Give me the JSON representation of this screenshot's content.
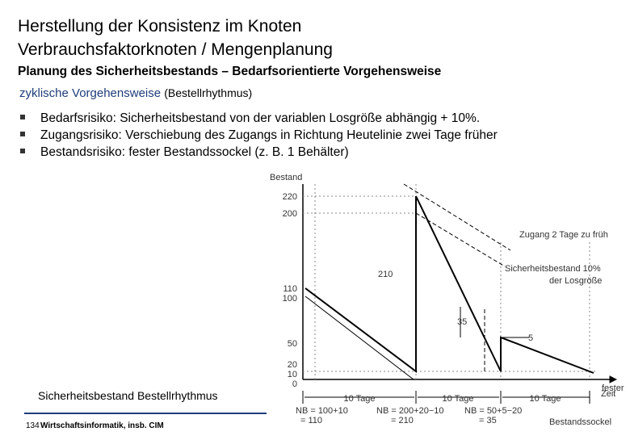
{
  "header": {
    "title_lines": [
      "Herstellung der Konsistenz im Knoten",
      "Verbrauchsfaktorknoten / Mengenplanung"
    ],
    "subtitle": "Planung des Sicherheitsbestands – Bedarfsorientierte Vorgehensweise"
  },
  "section": {
    "heading": "zyklische Vorgehensweise",
    "heading_note": "(Bestellrhythmus)"
  },
  "bullets": [
    "Bedarfsrisiko: Sicherheitsbestand von der variablen Losgröße abhängig + 10%.",
    "Zugangsrisiko: Verschiebung des Zugangs in Richtung Heutelinie zwei Tage früher",
    "Bestandsrisiko: fester Bestandssockel (z. B. 1 Behälter)"
  ],
  "caption": "Sicherheitsbestand Bestellrhythmus",
  "footer": {
    "page": "134",
    "text": "Wirtschaftsinformatik, insb. CIM"
  },
  "diagram": {
    "y_label": "Bestand",
    "x_label": "Zeit",
    "y_ticks": [
      "220",
      "200",
      "110",
      "100",
      "50",
      "20",
      "10",
      "0"
    ],
    "periods": [
      "10 Tage",
      "10 Tage",
      "10 Tage"
    ],
    "annotations": {
      "early": "Zugang 2 Tage zu früh",
      "safety_1": "Sicherheitsbestand 10%",
      "safety_2": "der Losgröße",
      "base_1": "fester",
      "base_2": "Bestandssockel",
      "level": "210",
      "gap": "35",
      "small": "5"
    },
    "orders": [
      [
        "NB = 100+10",
        "= 110"
      ],
      [
        "NB = 200+20−10",
        "= 210"
      ],
      [
        "NB = 50+5−20",
        "= 35"
      ]
    ]
  }
}
